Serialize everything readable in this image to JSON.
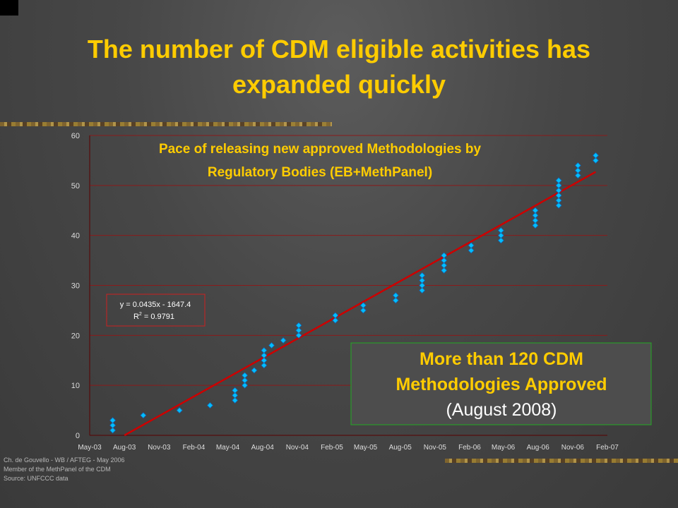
{
  "slide": {
    "title_lines": [
      "The number of CDM eligible activities has",
      "expanded quickly"
    ],
    "colors": {
      "title": "#ffcc00",
      "grid": "#8b1a1a",
      "marker": "#00bfff",
      "trendline": "#cc0000",
      "callout_border": "#22aa22"
    },
    "footer": [
      "Ch. de Gouvello - WB / AFTEG - May 2006",
      "Member of the MethPanel of the CDM",
      "Source: UNFCCC data"
    ]
  },
  "chart_data": {
    "type": "scatter",
    "title": "Pace of releasing new approved Methodologies by Regulatory Bodies (EB+MethPanel)",
    "title_lines": [
      "Pace of releasing new approved Methodologies by",
      "Regulatory Bodies (EB+MethPanel)"
    ],
    "xlabel": "",
    "ylabel": "",
    "ylim": [
      0,
      60
    ],
    "yticks": [
      "0",
      "10",
      "20",
      "30",
      "40",
      "50",
      "60"
    ],
    "xlim": [
      "2003-05",
      "2007-02"
    ],
    "xticks": [
      "May-03",
      "Aug-03",
      "Nov-03",
      "Feb-04",
      "May-04",
      "Aug-04",
      "Nov-04",
      "Feb-05",
      "May-05",
      "Aug-05",
      "Nov-05",
      "Feb-06",
      "May-06",
      "Aug-06",
      "Nov-06",
      "Feb-07"
    ],
    "grid": "horizontal",
    "series": [
      {
        "points": [
          {
            "x": "2003-07-01",
            "y": 1
          },
          {
            "x": "2003-07-01",
            "y": 2
          },
          {
            "x": "2003-07-01",
            "y": 3
          },
          {
            "x": "2003-09-20",
            "y": 4
          },
          {
            "x": "2003-12-25",
            "y": 5
          },
          {
            "x": "2004-03-15",
            "y": 6
          },
          {
            "x": "2004-05-20",
            "y": 7
          },
          {
            "x": "2004-05-20",
            "y": 8
          },
          {
            "x": "2004-05-20",
            "y": 9
          },
          {
            "x": "2004-06-15",
            "y": 10
          },
          {
            "x": "2004-06-15",
            "y": 11
          },
          {
            "x": "2004-06-15",
            "y": 12
          },
          {
            "x": "2004-07-10",
            "y": 13
          },
          {
            "x": "2004-08-05",
            "y": 14
          },
          {
            "x": "2004-08-05",
            "y": 15
          },
          {
            "x": "2004-08-05",
            "y": 16
          },
          {
            "x": "2004-08-05",
            "y": 17
          },
          {
            "x": "2004-08-25",
            "y": 18
          },
          {
            "x": "2004-09-25",
            "y": 19
          },
          {
            "x": "2004-11-05",
            "y": 20
          },
          {
            "x": "2004-11-05",
            "y": 21
          },
          {
            "x": "2004-11-05",
            "y": 22
          },
          {
            "x": "2005-02-10",
            "y": 23
          },
          {
            "x": "2005-02-10",
            "y": 24
          },
          {
            "x": "2005-04-25",
            "y": 25
          },
          {
            "x": "2005-04-25",
            "y": 26
          },
          {
            "x": "2005-07-20",
            "y": 27
          },
          {
            "x": "2005-07-20",
            "y": 28
          },
          {
            "x": "2005-09-28",
            "y": 29
          },
          {
            "x": "2005-09-28",
            "y": 30
          },
          {
            "x": "2005-09-28",
            "y": 31
          },
          {
            "x": "2005-09-28",
            "y": 32
          },
          {
            "x": "2005-11-25",
            "y": 33
          },
          {
            "x": "2005-11-25",
            "y": 34
          },
          {
            "x": "2005-11-25",
            "y": 35
          },
          {
            "x": "2005-11-25",
            "y": 36
          },
          {
            "x": "2006-02-05",
            "y": 37
          },
          {
            "x": "2006-02-05",
            "y": 38
          },
          {
            "x": "2006-04-25",
            "y": 39
          },
          {
            "x": "2006-04-25",
            "y": 40
          },
          {
            "x": "2006-04-25",
            "y": 41
          },
          {
            "x": "2006-07-25",
            "y": 42
          },
          {
            "x": "2006-07-25",
            "y": 43
          },
          {
            "x": "2006-07-25",
            "y": 44
          },
          {
            "x": "2006-07-25",
            "y": 45
          },
          {
            "x": "2006-09-25",
            "y": 46
          },
          {
            "x": "2006-09-25",
            "y": 47
          },
          {
            "x": "2006-09-25",
            "y": 48
          },
          {
            "x": "2006-09-25",
            "y": 49
          },
          {
            "x": "2006-09-25",
            "y": 50
          },
          {
            "x": "2006-09-25",
            "y": 51
          },
          {
            "x": "2006-11-15",
            "y": 52
          },
          {
            "x": "2006-11-15",
            "y": 53
          },
          {
            "x": "2006-11-15",
            "y": 54
          },
          {
            "x": "2007-01-01",
            "y": 55
          },
          {
            "x": "2007-01-01",
            "y": 56
          }
        ]
      }
    ],
    "trendline": {
      "equation_text": "y = 0.0435x - 1647.4",
      "r2_label": "R",
      "r2_sup": "2",
      "r2_value": " = 0.9791",
      "slope": 0.0435,
      "intercept": -1647.4,
      "from": "2003-08-01",
      "to": "2007-01-01"
    },
    "annotation": {
      "line1": "More than 120 CDM",
      "line2": "Methodologies Approved",
      "line3": "(August 2008)"
    }
  }
}
